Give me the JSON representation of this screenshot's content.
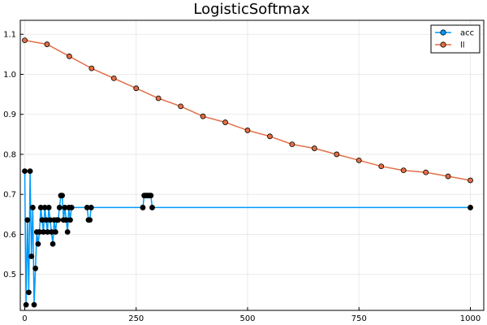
{
  "chart_data": {
    "type": "line",
    "title": "LogisticSoftmax",
    "xlabel": "",
    "ylabel": "",
    "xlim": [
      -10,
      1030
    ],
    "ylim": [
      0.41,
      1.135
    ],
    "x_ticks": [
      0,
      250,
      500,
      750,
      1000
    ],
    "x_tick_labels": [
      "0",
      "250",
      "500",
      "750",
      "1000"
    ],
    "y_ticks": [
      0.5,
      0.6,
      0.7,
      0.8,
      0.9,
      1.0,
      1.1
    ],
    "y_tick_labels": [
      "0.5",
      "0.6",
      "0.7",
      "0.8",
      "0.9",
      "1.0",
      "1.1"
    ],
    "grid": true,
    "legend_position": "top-right",
    "series": [
      {
        "name": "acc",
        "color": "#009af9",
        "marker_color": "#000000",
        "marker": "circle",
        "x": [
          0,
          3,
          6,
          9,
          12,
          15,
          18,
          21,
          24,
          27,
          30,
          33,
          36,
          39,
          42,
          45,
          48,
          51,
          54,
          57,
          60,
          63,
          66,
          69,
          72,
          75,
          78,
          81,
          84,
          87,
          90,
          93,
          96,
          99,
          102,
          105,
          140,
          143,
          146,
          149,
          265,
          268,
          271,
          274,
          277,
          280,
          283,
          286,
          1000
        ],
        "y": [
          0.758,
          0.424,
          0.636,
          0.455,
          0.758,
          0.545,
          0.667,
          0.424,
          0.515,
          0.606,
          0.576,
          0.606,
          0.667,
          0.636,
          0.606,
          0.667,
          0.636,
          0.606,
          0.667,
          0.636,
          0.606,
          0.576,
          0.636,
          0.606,
          0.636,
          0.636,
          0.667,
          0.697,
          0.697,
          0.636,
          0.667,
          0.636,
          0.606,
          0.667,
          0.636,
          0.667,
          0.667,
          0.636,
          0.636,
          0.667,
          0.667,
          0.697,
          0.697,
          0.697,
          0.697,
          0.697,
          0.697,
          0.667,
          0.667
        ]
      },
      {
        "name": "ll",
        "color": "#e26f46",
        "marker_color": "#e26f46",
        "marker": "circle",
        "x": [
          0,
          50,
          100,
          150,
          200,
          250,
          300,
          350,
          400,
          450,
          500,
          550,
          600,
          650,
          700,
          750,
          800,
          850,
          900,
          950,
          1000
        ],
        "y": [
          1.085,
          1.075,
          1.045,
          1.015,
          0.99,
          0.965,
          0.94,
          0.92,
          0.895,
          0.88,
          0.86,
          0.845,
          0.825,
          0.815,
          0.8,
          0.785,
          0.77,
          0.76,
          0.755,
          0.745,
          0.735
        ]
      }
    ]
  }
}
